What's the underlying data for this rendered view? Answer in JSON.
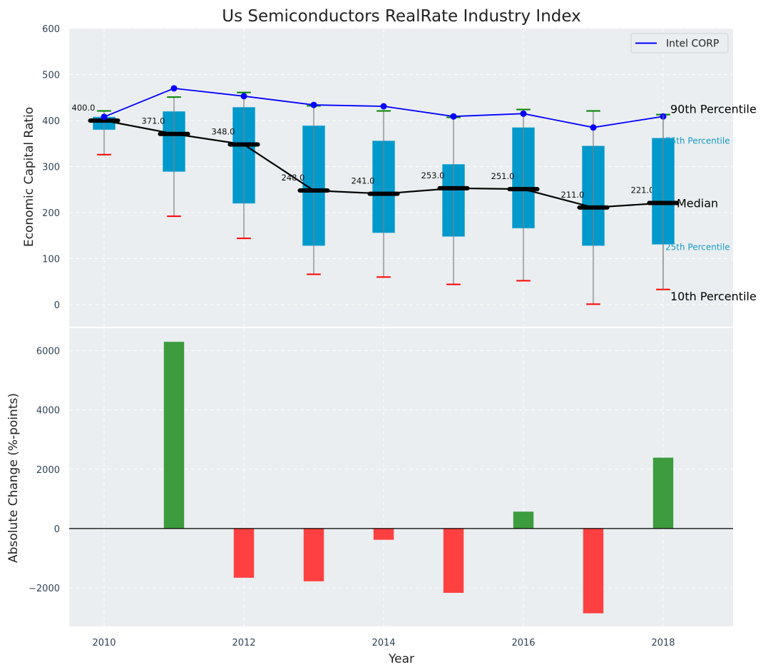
{
  "chart_data": [
    {
      "type": "box",
      "title": "Us Semiconductors RealRate Industry Index",
      "xlabel": "",
      "ylabel": "Economic Capital Ratio",
      "ylim": [
        -48,
        600
      ],
      "xlim": [
        2009.5,
        2019.0
      ],
      "grid": true,
      "x": [
        2010,
        2011,
        2012,
        2013,
        2014,
        2015,
        2016,
        2017,
        2018
      ],
      "yticks": [
        0,
        100,
        200,
        300,
        400,
        500,
        600
      ],
      "percentiles": {
        "p10": [
          326,
          192,
          144,
          66,
          60,
          44,
          52,
          1,
          33
        ],
        "p25": [
          380,
          289,
          220,
          128,
          156,
          148,
          166,
          128,
          131
        ],
        "median": [
          400,
          371,
          348,
          248,
          241,
          253,
          251,
          211,
          221
        ],
        "p75": [
          408,
          420,
          429,
          389,
          356,
          305,
          385,
          345,
          362
        ],
        "p90": [
          421,
          451,
          461,
          432,
          421,
          407,
          424,
          421,
          413
        ]
      },
      "median_labels": [
        "400.0",
        "371.0",
        "348.0",
        "248.0",
        "241.0",
        "253.0",
        "251.0",
        "211.0",
        "221.0"
      ],
      "series": [
        {
          "name": "Intel CORP",
          "color": "#0000ff",
          "values": [
            408,
            470,
            453,
            434,
            431,
            409,
            415,
            385,
            409
          ]
        }
      ],
      "legend": {
        "position": "top-right",
        "entries": [
          "Intel CORP"
        ]
      },
      "annotations": {
        "p90": "90th Percentile",
        "p75": "75th Percentile",
        "median": "Median",
        "p25": "25th Percentile",
        "p10": "10th Percentile"
      },
      "colors": {
        "box": "#0099cc",
        "median": "#000000",
        "p90_cap": "#008000",
        "p10_cap": "#ff0000",
        "whisker": "#808080",
        "percentile_label": "#1a9ac9"
      }
    },
    {
      "type": "bar",
      "title": "",
      "xlabel": "Year",
      "ylabel": "Absolute Change (%-points)",
      "ylim": [
        -3300,
        6760
      ],
      "xlim": [
        2009.5,
        2019.0
      ],
      "grid": true,
      "categories": [
        2010,
        2011,
        2012,
        2013,
        2014,
        2015,
        2016,
        2017,
        2018
      ],
      "values": [
        0,
        6300,
        -1660,
        -1780,
        -380,
        -2170,
        570,
        -2860,
        2390
      ],
      "xticks": [
        "2010",
        "2012",
        "2014",
        "2016",
        "2018"
      ],
      "yticks": [
        -2000,
        0,
        2000,
        4000,
        6000
      ],
      "ytick_labels": [
        "−2000",
        "0",
        "2000",
        "4000",
        "6000"
      ],
      "colors": {
        "positive": "#3d9c3d",
        "negative": "#ff4040",
        "zero_line": "#000000"
      }
    }
  ]
}
